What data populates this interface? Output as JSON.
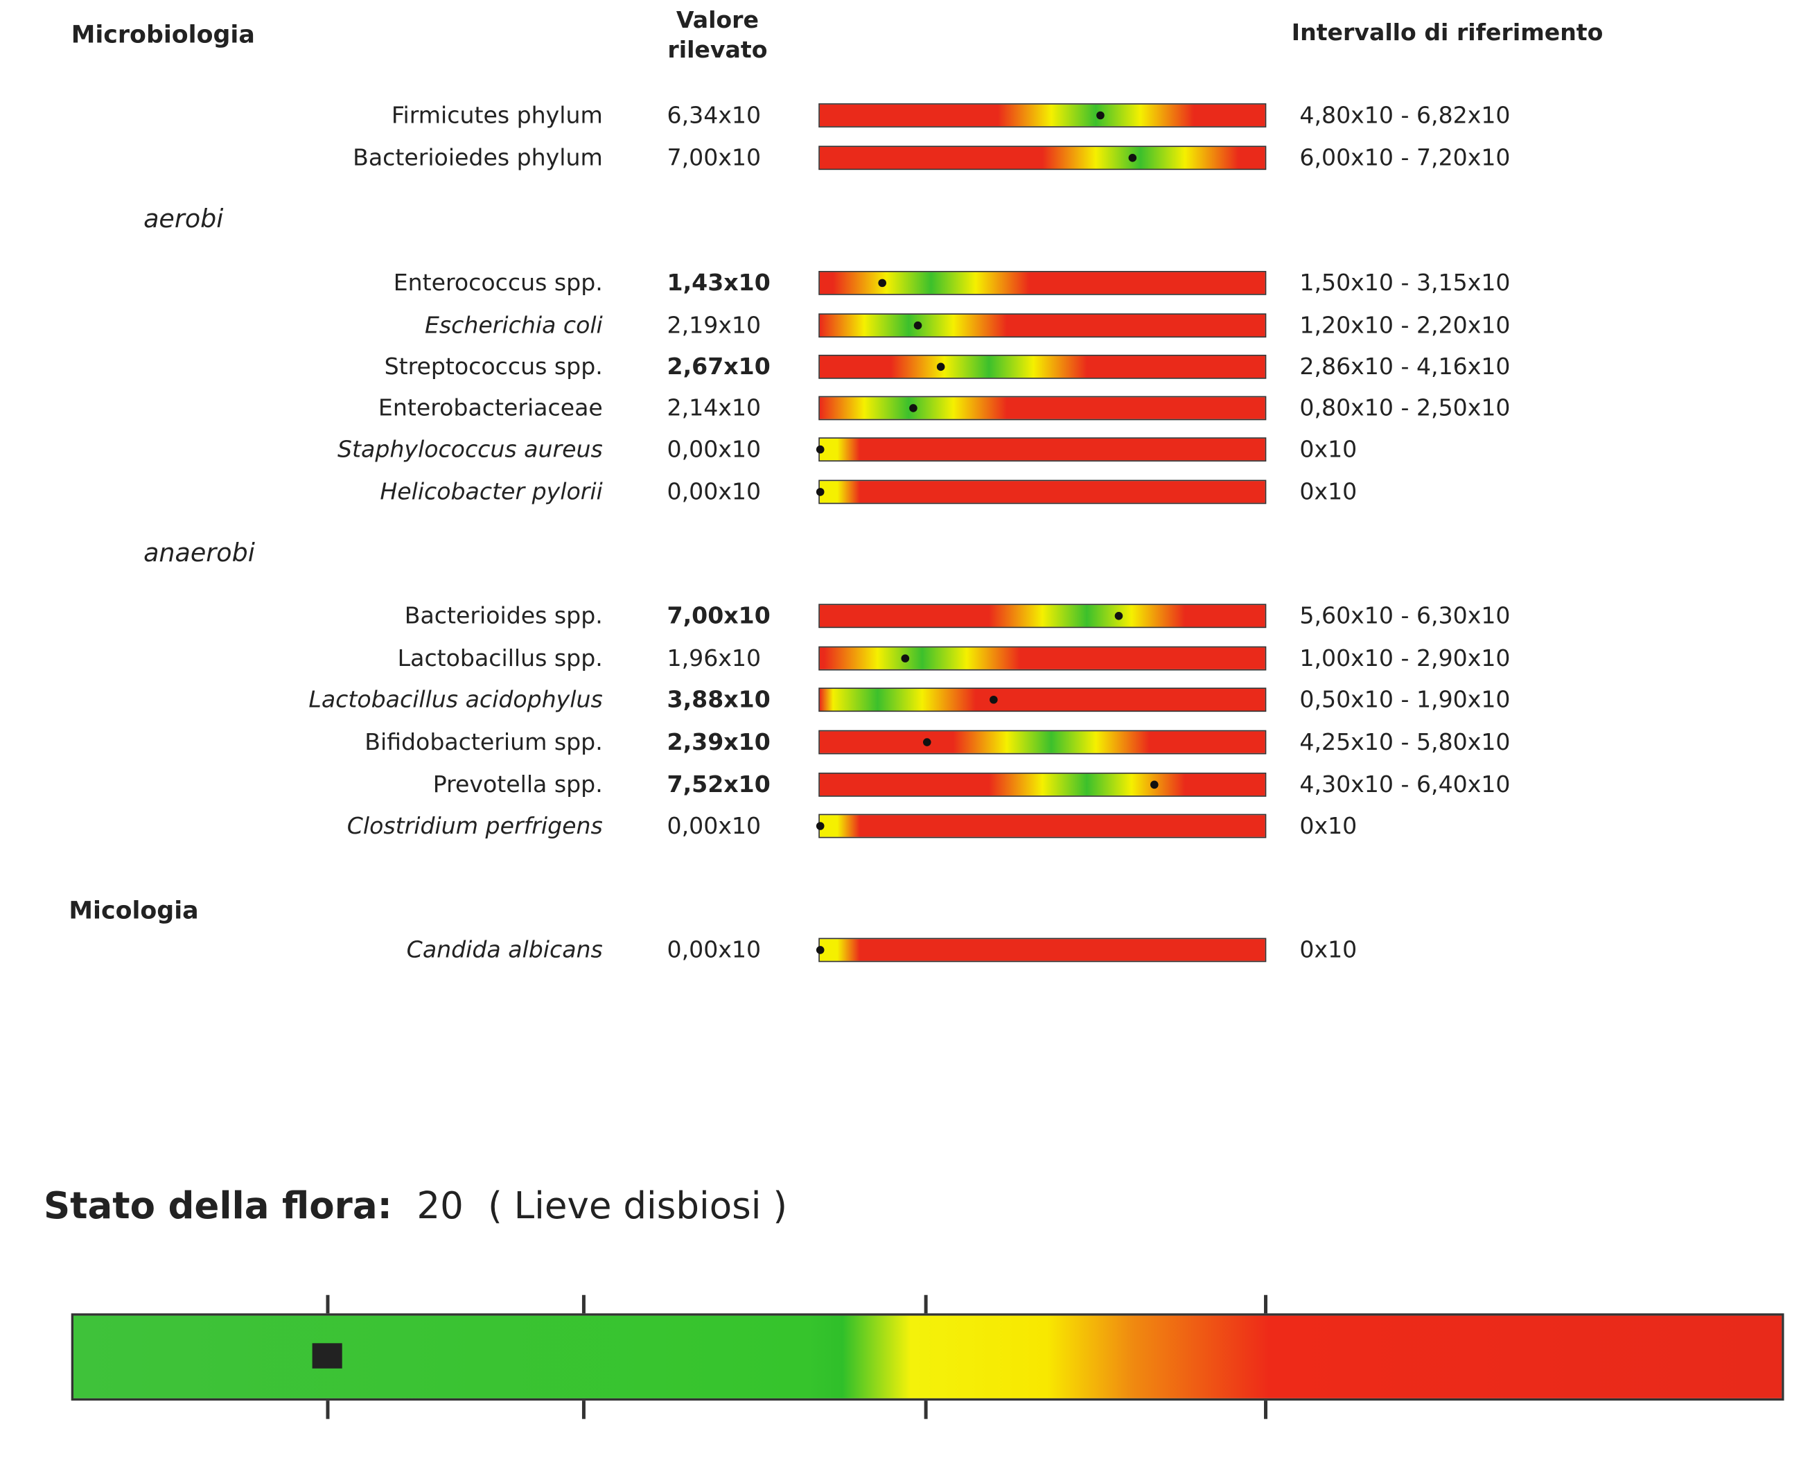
{
  "header": {
    "title": "Microbiologia",
    "value_header": "Valore rilevato",
    "range_header": "Intervallo di riferimento"
  },
  "sections": [
    {
      "rows": [
        {
          "name": "Firmicutes phylum",
          "value": "6,34x10",
          "range": "4,80x10 - 6,82x10"
        },
        {
          "name": "Bacterioiedes phylum",
          "value": "7,00x10",
          "range": "6,00x10 - 7,20x10"
        }
      ]
    },
    {
      "label": "aerobi",
      "rows": [
        {
          "name": "Enterococcus spp.",
          "value": "1,43x10",
          "range": "1,50x10 - 3,15x10"
        },
        {
          "name": "Escherichia coli",
          "value": "2,19x10",
          "range": "1,20x10 - 2,20x10"
        },
        {
          "name": "Streptococcus spp.",
          "value": "2,67x10",
          "range": "2,86x10 - 4,16x10"
        },
        {
          "name": "Enterobacteriaceae",
          "value": "2,14x10",
          "range": "0,80x10 - 2,50x10"
        },
        {
          "name": "Staphylococcus aureus",
          "value": "0,00x10",
          "range": "0x10"
        },
        {
          "name": "Helicobacter pylorii",
          "value": "0,00x10",
          "range": "0x10"
        }
      ]
    },
    {
      "label": "anaerobi",
      "rows": [
        {
          "name": "Bacterioides spp.",
          "value": "7,00x10",
          "range": "5,60x10 - 6,30x10"
        },
        {
          "name": "Lactobacillus spp.",
          "value": "1,96x10",
          "range": "1,00x10 - 2,90x10"
        },
        {
          "name": "Lactobacillus acidophylus",
          "value": "3,88x10",
          "range": "0,50x10 - 1,90x10"
        },
        {
          "name": "Bifidobacterium spp.",
          "value": "2,39x10",
          "range": "4,25x10 - 5,80x10"
        },
        {
          "name": "Prevotella spp.",
          "value": "7,52x10",
          "range": "4,30x10 - 6,40x10"
        },
        {
          "name": "Clostridium perfrigens",
          "value": "0,00x10",
          "range": "0x10"
        }
      ]
    },
    {
      "label": "Micologia",
      "rows": [
        {
          "name": "Candida albicans",
          "value": "0,00x10",
          "range": "0x10"
        }
      ]
    }
  ],
  "flora": {
    "label": "Stato della flora:",
    "score": 20,
    "status": "( Lieve disbiosi )"
  }
}
